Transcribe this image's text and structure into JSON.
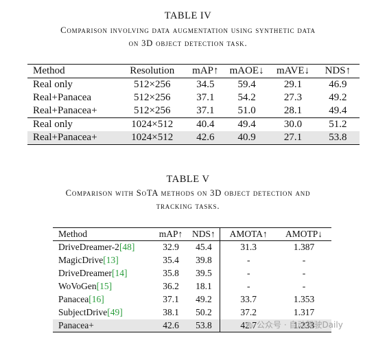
{
  "table4": {
    "number": "TABLE IV",
    "caption_line1": "Comparison involving data augmentation using synthetic data",
    "caption_line2": "on 3D object detection task.",
    "headers": [
      "Method",
      "Resolution",
      "mAP↑",
      "mAOE↓",
      "mAVE↓",
      "NDS↑"
    ],
    "rows": [
      [
        "Real only",
        "512×256",
        "34.5",
        "59.4",
        "29.1",
        "46.9"
      ],
      [
        "Real+Panacea",
        "512×256",
        "37.1",
        "54.2",
        "27.3",
        "49.2"
      ],
      [
        "Real+Panacea+",
        "512×256",
        "37.1",
        "51.0",
        "28.1",
        "49.4"
      ],
      [
        "Real only",
        "1024×512",
        "40.4",
        "49.4",
        "30.0",
        "51.2"
      ],
      [
        "Real+Panacea+",
        "1024×512",
        "42.6",
        "40.9",
        "27.1",
        "53.8"
      ]
    ]
  },
  "table5": {
    "number": "TABLE V",
    "caption_line1": "Comparison with SoTA methods on 3D object detection and",
    "caption_line2": "tracking tasks.",
    "headers": [
      "Method",
      "mAP↑",
      "NDS↑",
      "AMOTA↑",
      "AMOTP↓"
    ],
    "rows": [
      {
        "name": "DriveDreamer-2",
        "ref": "[48]",
        "map": "32.9",
        "nds": "45.4",
        "amota": "31.3",
        "amotp": "1.387"
      },
      {
        "name": "MagicDrive",
        "ref": "[13]",
        "map": "35.4",
        "nds": "39.8",
        "amota": "-",
        "amotp": "-"
      },
      {
        "name": "DriveDreamer",
        "ref": "[14]",
        "map": "35.8",
        "nds": "39.5",
        "amota": "-",
        "amotp": "-"
      },
      {
        "name": "WoVoGen",
        "ref": "[15]",
        "map": "36.2",
        "nds": "18.1",
        "amota": "-",
        "amotp": "-"
      },
      {
        "name": "Panacea",
        "ref": "[16]",
        "map": "37.1",
        "nds": "49.2",
        "amota": "33.7",
        "amotp": "1.353"
      },
      {
        "name": "SubjectDrive",
        "ref": "[49]",
        "map": "38.1",
        "nds": "50.2",
        "amota": "37.2",
        "amotp": "1.317"
      },
      {
        "name": "Panacea+",
        "ref": "",
        "map": "42.6",
        "nds": "53.8",
        "amota": "42.7",
        "amotp": "1.233"
      }
    ]
  },
  "watermark": {
    "text": "公众号 · 自动驾驶Daily",
    "icon": "wechat-logo-icon"
  },
  "colors": {
    "highlight": "#e6e6e6",
    "reference_link": "#2a9d3c",
    "watermark": "#9a9a9a"
  }
}
